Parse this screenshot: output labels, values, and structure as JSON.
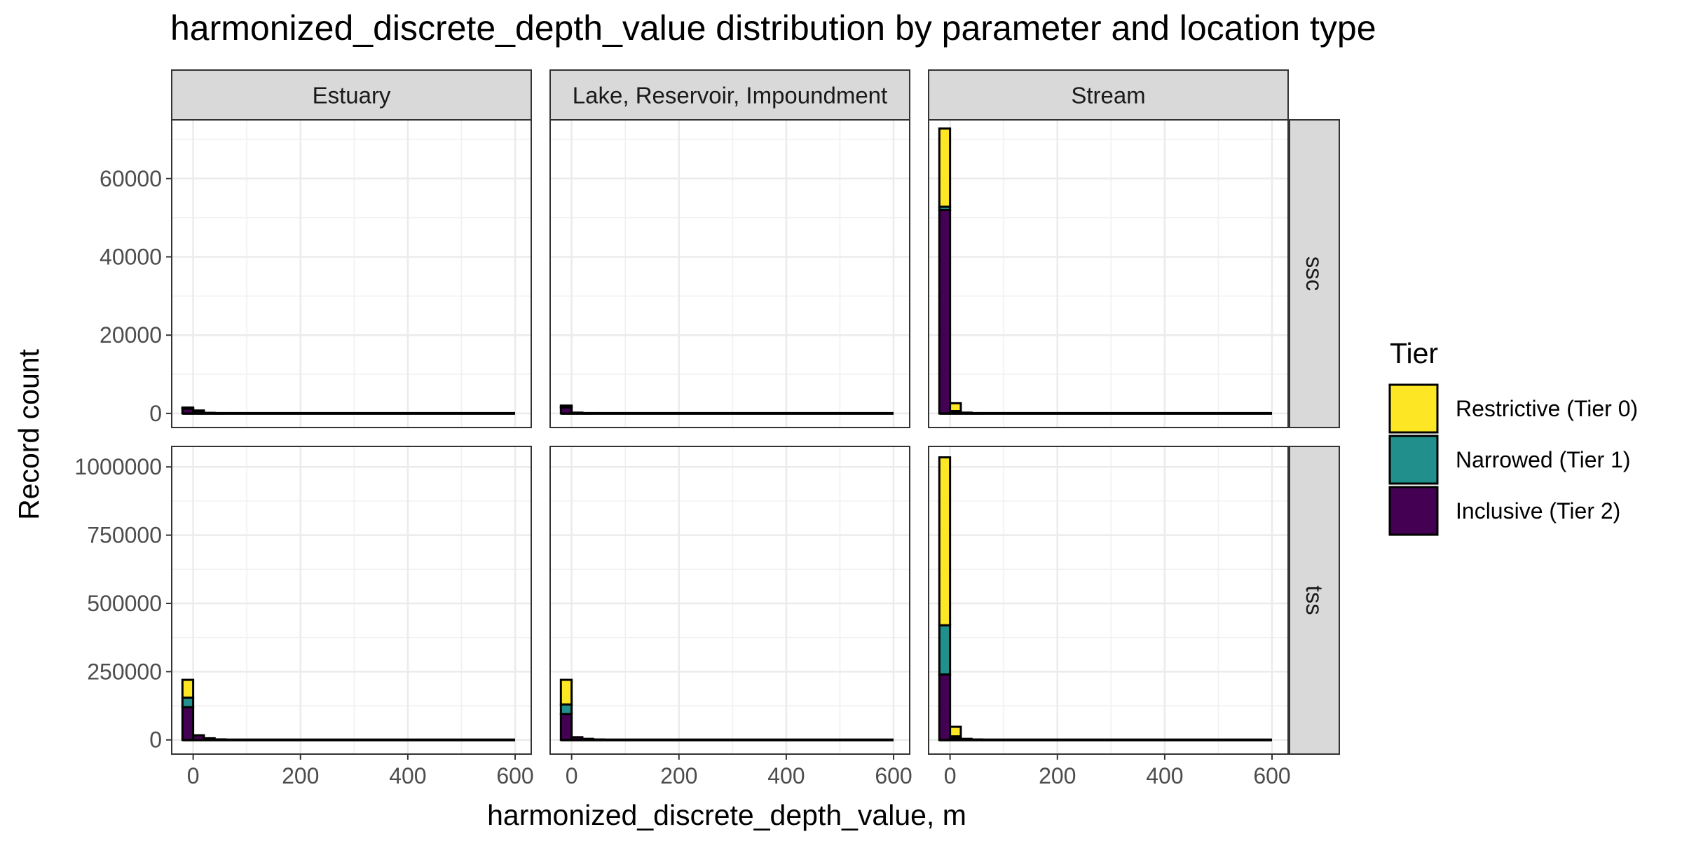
{
  "chart_data": {
    "type": "bar",
    "subtype": "faceted stacked histogram",
    "title": "harmonized_discrete_depth_value distribution by parameter and location type",
    "xlabel": "harmonized_discrete_depth_value, m",
    "ylabel": "Record count",
    "facet_columns": [
      "Estuary",
      "Lake, Reservoir, Impoundment",
      "Stream"
    ],
    "facet_rows": [
      "ssc",
      "tss"
    ],
    "x_range": [
      -40,
      630
    ],
    "x_ticks": [
      0,
      200,
      400,
      600
    ],
    "x_tick_labels": [
      "0",
      "200",
      "400",
      "600"
    ],
    "bin_width": 20,
    "rows": [
      {
        "name": "ssc",
        "ylim": [
          -3600,
          75000
        ],
        "y_ticks": [
          0,
          20000,
          40000,
          60000
        ],
        "y_tick_labels": [
          "0",
          "20000",
          "40000",
          "60000"
        ]
      },
      {
        "name": "tss",
        "ylim": [
          -52000,
          1075000
        ],
        "y_ticks": [
          0,
          250000,
          500000,
          750000,
          1000000
        ],
        "y_tick_labels": [
          "0",
          "250000",
          "500000",
          "750000",
          "1000000"
        ]
      }
    ],
    "grid": true,
    "legend": {
      "title": "Tier",
      "position": "right",
      "entries": [
        {
          "label": "Restrictive (Tier 0)",
          "color": "#FDE725"
        },
        {
          "label": "Narrowed (Tier 1)",
          "color": "#21908C"
        },
        {
          "label": "Inclusive (Tier 2)",
          "color": "#440154"
        }
      ]
    },
    "panels": [
      {
        "row": "ssc",
        "column": "Estuary",
        "bins": [
          {
            "x0": -20,
            "x1": 0,
            "tier2": 1200,
            "tier1": 100,
            "tier0": 200
          },
          {
            "x0": 0,
            "x1": 20,
            "tier2": 600,
            "tier1": 50,
            "tier0": 100
          },
          {
            "x0": 20,
            "x1": 40,
            "tier2": 150,
            "tier1": 0,
            "tier0": 0
          },
          {
            "x0": 40,
            "x1": 60,
            "tier2": 50,
            "tier1": 0,
            "tier0": 0
          }
        ]
      },
      {
        "row": "ssc",
        "column": "Lake, Reservoir, Impoundment",
        "bins": [
          {
            "x0": -20,
            "x1": 0,
            "tier2": 1500,
            "tier1": 200,
            "tier0": 300
          },
          {
            "x0": 0,
            "x1": 20,
            "tier2": 200,
            "tier1": 0,
            "tier0": 0
          },
          {
            "x0": 20,
            "x1": 40,
            "tier2": 50,
            "tier1": 0,
            "tier0": 0
          }
        ]
      },
      {
        "row": "ssc",
        "column": "Stream",
        "bins": [
          {
            "x0": -20,
            "x1": 0,
            "tier2": 52000,
            "tier1": 800,
            "tier0": 20000
          },
          {
            "x0": 0,
            "x1": 20,
            "tier2": 500,
            "tier1": 100,
            "tier0": 2000
          },
          {
            "x0": 20,
            "x1": 40,
            "tier2": 100,
            "tier1": 0,
            "tier0": 100
          },
          {
            "x0": 40,
            "x1": 60,
            "tier2": 50,
            "tier1": 0,
            "tier0": 0
          }
        ]
      },
      {
        "row": "tss",
        "column": "Estuary",
        "bins": [
          {
            "x0": -20,
            "x1": 0,
            "tier2": 120000,
            "tier1": 35000,
            "tier0": 65000
          },
          {
            "x0": 0,
            "x1": 20,
            "tier2": 17000,
            "tier1": 0,
            "tier0": 0
          },
          {
            "x0": 20,
            "x1": 40,
            "tier2": 6000,
            "tier1": 0,
            "tier0": 0
          },
          {
            "x0": 40,
            "x1": 60,
            "tier2": 2000,
            "tier1": 0,
            "tier0": 0
          }
        ]
      },
      {
        "row": "tss",
        "column": "Lake, Reservoir, Impoundment",
        "bins": [
          {
            "x0": -20,
            "x1": 0,
            "tier2": 95000,
            "tier1": 35000,
            "tier0": 90000
          },
          {
            "x0": 0,
            "x1": 20,
            "tier2": 10000,
            "tier1": 0,
            "tier0": 0
          },
          {
            "x0": 20,
            "x1": 40,
            "tier2": 4000,
            "tier1": 0,
            "tier0": 0
          },
          {
            "x0": 40,
            "x1": 60,
            "tier2": 1500,
            "tier1": 0,
            "tier0": 0
          }
        ]
      },
      {
        "row": "tss",
        "column": "Stream",
        "bins": [
          {
            "x0": -20,
            "x1": 0,
            "tier2": 240000,
            "tier1": 180000,
            "tier0": 615000
          },
          {
            "x0": 0,
            "x1": 20,
            "tier2": 8000,
            "tier1": 5000,
            "tier0": 35000
          },
          {
            "x0": 20,
            "x1": 40,
            "tier2": 4000,
            "tier1": 0,
            "tier0": 0
          },
          {
            "x0": 40,
            "x1": 60,
            "tier2": 1500,
            "tier1": 0,
            "tier0": 0
          }
        ]
      }
    ]
  }
}
